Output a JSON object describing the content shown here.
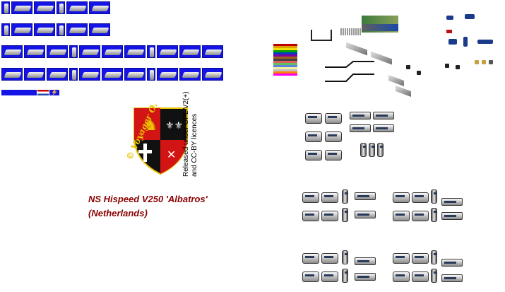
{
  "credits": {
    "license_line1": "Released under GPL V2(+)",
    "license_line2": "and CC-BY licences",
    "signature": "© Voyager One"
  },
  "title": {
    "line1": "NS Hispeed V250 'Albatros'",
    "line2": "(Netherlands)"
  },
  "colors": {
    "sprite_background": "#1414e6",
    "title_color": "#8b0000",
    "shield_black": "#111111",
    "shield_red": "#d21414",
    "shield_gold": "#e8c300"
  }
}
